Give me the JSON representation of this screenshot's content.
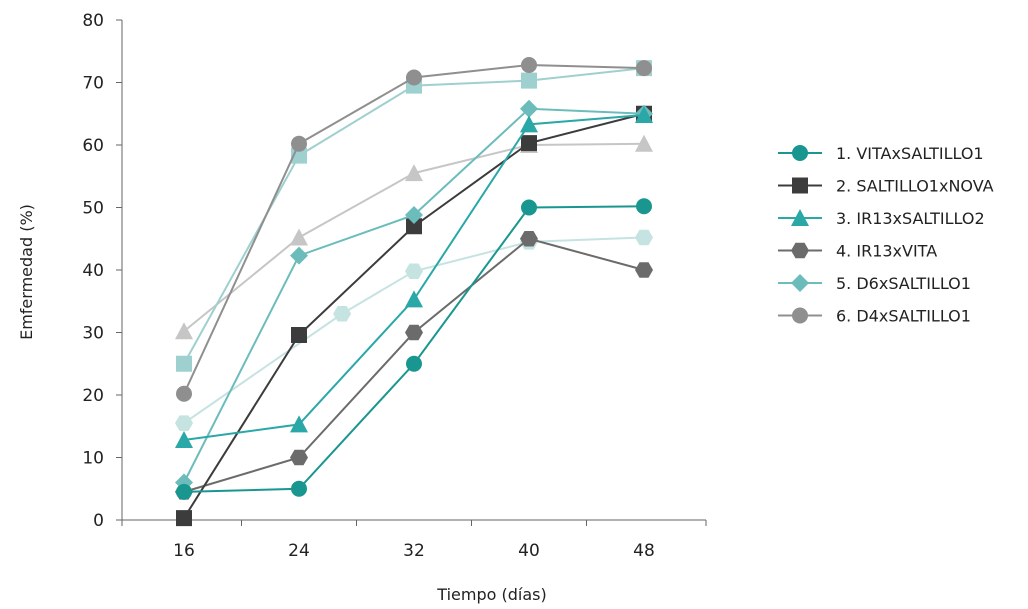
{
  "chart_data": {
    "type": "line",
    "title": "",
    "xlabel": "Tiempo (días)",
    "ylabel": "Emfermedad (%)",
    "x": [
      16,
      24,
      32,
      40,
      48
    ],
    "ylim": [
      0,
      80
    ],
    "yticks": [
      0,
      10,
      20,
      30,
      40,
      50,
      60,
      70,
      80
    ],
    "grid": false,
    "legend_position": "right",
    "series": [
      {
        "name": "1. VITAxSALTILLO1",
        "color": "#1a9690",
        "marker": "circle",
        "legend": true,
        "points": [
          [
            16,
            4.5
          ],
          [
            24,
            5
          ],
          [
            32,
            25
          ],
          [
            40,
            50
          ],
          [
            48,
            50.2
          ]
        ]
      },
      {
        "name": "2. SALTILLO1xNOVA",
        "color": "#3c3c3c",
        "marker": "square",
        "legend": true,
        "points": [
          [
            16,
            0.3
          ],
          [
            24,
            29.6
          ],
          [
            32,
            47
          ],
          [
            40,
            60.3
          ],
          [
            48,
            65
          ]
        ]
      },
      {
        "name": "3. IR13xSALTILLO2",
        "color": "#2aa7a7",
        "marker": "triangle",
        "legend": true,
        "points": [
          [
            16,
            12.8
          ],
          [
            24,
            15.3
          ],
          [
            32,
            35.3
          ],
          [
            40,
            63.3
          ],
          [
            48,
            64.8
          ]
        ]
      },
      {
        "name": "4. IR13xVITA",
        "color": "#6b6b6b",
        "marker": "hexagon",
        "legend": true,
        "points": [
          [
            16,
            4.5
          ],
          [
            24,
            10
          ],
          [
            32,
            30
          ],
          [
            40,
            45
          ],
          [
            48,
            40
          ]
        ]
      },
      {
        "name": "5. D6xSALTILLO1",
        "color": "#6cbcbc",
        "marker": "diamond",
        "legend": true,
        "points": [
          [
            16,
            6
          ],
          [
            24,
            42.3
          ],
          [
            32,
            48.8
          ],
          [
            40,
            65.8
          ],
          [
            48,
            65
          ]
        ]
      },
      {
        "name": "6. D4xSALTILLO1",
        "color": "#8f8f8f",
        "marker": "circle",
        "legend": true,
        "points": [
          [
            16,
            20.2
          ],
          [
            24,
            60.2
          ],
          [
            32,
            70.8
          ],
          [
            40,
            72.8
          ],
          [
            48,
            72.3
          ]
        ]
      },
      {
        "name": "",
        "color": "#9fd0d0",
        "marker": "square",
        "legend": false,
        "points": [
          [
            16,
            25
          ],
          [
            24,
            58.3
          ],
          [
            32,
            69.5
          ],
          [
            40,
            70.3
          ],
          [
            48,
            72.3
          ]
        ]
      },
      {
        "name": "",
        "color": "#c6c6c6",
        "marker": "triangle",
        "legend": false,
        "points": [
          [
            16,
            30.2
          ],
          [
            24,
            45.2
          ],
          [
            32,
            55.5
          ],
          [
            40,
            60
          ],
          [
            48,
            60.2
          ]
        ]
      },
      {
        "name": "",
        "color": "#c5e3e1",
        "marker": "hexagon",
        "legend": false,
        "points": [
          [
            16,
            15.5
          ],
          [
            27,
            33
          ],
          [
            32,
            39.8
          ],
          [
            40,
            44.5
          ],
          [
            48,
            45.2
          ]
        ]
      }
    ]
  }
}
